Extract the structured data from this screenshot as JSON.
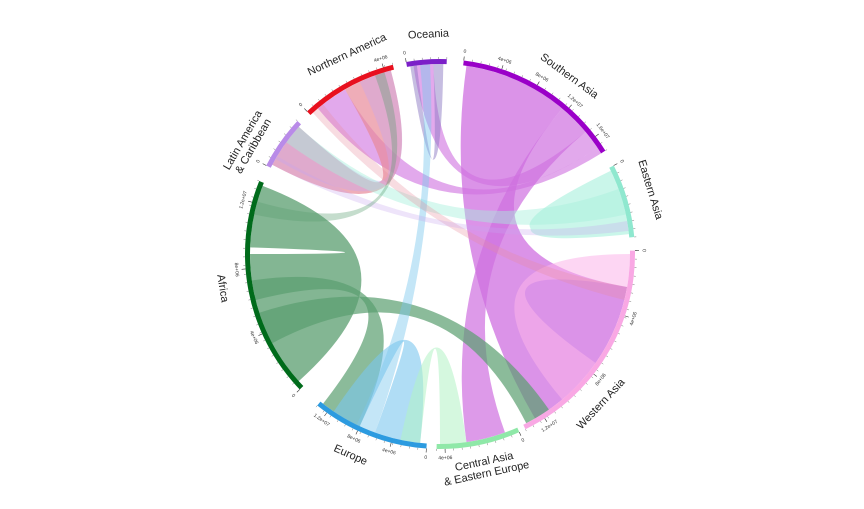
{
  "chart_data": {
    "type": "chord",
    "regions": [
      {
        "key": "oceania",
        "label": "Oceania",
        "label_lines": [
          "Oceania"
        ],
        "color": "#7B1FC8",
        "fill": "#8e7cc3",
        "ticks": [
          "0"
        ]
      },
      {
        "key": "southern-asia",
        "label": "Southern Asia",
        "label_lines": [
          "Southern Asia"
        ],
        "color": "#9A00C8",
        "fill": "#cf6fe0",
        "ticks": [
          "0",
          "4e+06",
          "8e+06",
          "1.2e+07",
          "1.6e+07"
        ]
      },
      {
        "key": "eastern-asia",
        "label": "Eastern Asia",
        "label_lines": [
          "Eastern Asia"
        ],
        "color": "#8FE8CF",
        "fill": "#a6f0dc",
        "ticks": [
          "0"
        ]
      },
      {
        "key": "western-asia",
        "label": "Western Asia",
        "label_lines": [
          "Western Asia"
        ],
        "color": "#F9A8E4",
        "fill": "#fbb4ea",
        "ticks": [
          "0",
          "4e+06",
          "8e+06",
          "1.2e+07"
        ]
      },
      {
        "key": "central-asia-eastern-europe",
        "label": "Central Asia & Eastern Europe",
        "label_lines": [
          "Central Asia",
          "& Eastern Europe"
        ],
        "color": "#8FE8A8",
        "fill": "#b3f2c4",
        "ticks": [
          "0",
          "4e+06"
        ]
      },
      {
        "key": "europe",
        "label": "Europe",
        "label_lines": [
          "Europe"
        ],
        "color": "#2C9BE0",
        "fill": "#7cc7ee",
        "ticks": [
          "0",
          "4e+06",
          "8e+06",
          "1.2e+07"
        ]
      },
      {
        "key": "africa",
        "label": "Africa",
        "label_lines": [
          "Africa"
        ],
        "color": "#006B1B",
        "fill": "#5a9e6f",
        "ticks": [
          "0",
          "4e+06",
          "8e+06",
          "1.2e+07"
        ]
      },
      {
        "key": "latin-america-caribbean",
        "label": "Latin America & Caribbean",
        "label_lines": [
          "Latin America",
          "& Caribbean"
        ],
        "color": "#B98BE8",
        "fill": "#c8a6ee",
        "ticks": [
          "0"
        ]
      },
      {
        "key": "northern-america",
        "label": "Northern America",
        "label_lines": [
          "Northern America"
        ],
        "color": "#E8101E",
        "fill": "#e88a9a",
        "ticks": [
          "0",
          "4e+06"
        ]
      }
    ]
  }
}
